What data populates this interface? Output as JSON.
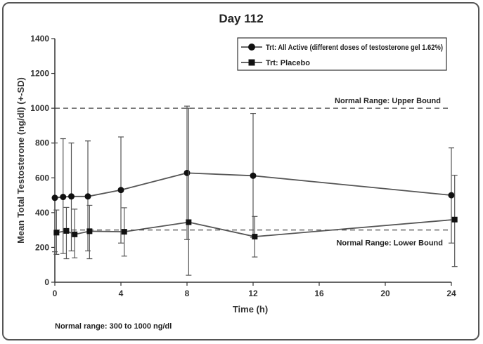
{
  "chart_data": {
    "type": "line",
    "title": "Day 112",
    "xlabel": "Time (h)",
    "ylabel": "Mean Total Testosterone (ng/dl) (+-SD)",
    "xlim": [
      0,
      24
    ],
    "ylim": [
      0,
      1400
    ],
    "xticks": [
      0,
      4,
      8,
      12,
      16,
      20,
      24
    ],
    "yticks": [
      0,
      200,
      400,
      600,
      800,
      1000,
      1200,
      1400
    ],
    "legend_position": "top-right",
    "series": [
      {
        "name": "Trt: All Active (different doses of testosterone gel 1.62%)",
        "marker": "circle",
        "x": [
          0,
          0.5,
          1,
          2,
          4,
          8,
          12,
          24
        ],
        "values": [
          485,
          490,
          493,
          493,
          530,
          628,
          612,
          500
        ],
        "sd_upper": [
          800,
          825,
          800,
          812,
          835,
          1012,
          970,
          772
        ],
        "sd_lower": [
          175,
          165,
          180,
          180,
          225,
          245,
          258,
          225
        ]
      },
      {
        "name": "Trt: Placebo",
        "marker": "square",
        "x": [
          0.1,
          0.7,
          1.2,
          2.1,
          4.2,
          8.1,
          12.1,
          24.2
        ],
        "values": [
          285,
          295,
          275,
          293,
          290,
          345,
          262,
          360
        ],
        "sd_upper": [
          415,
          430,
          420,
          442,
          428,
          1000,
          378,
          615
        ],
        "sd_lower": [
          160,
          135,
          140,
          135,
          150,
          40,
          145,
          90
        ]
      }
    ],
    "reference_lines": [
      {
        "value": 1000,
        "label": "Normal Range: Upper Bound"
      },
      {
        "value": 300,
        "label": "Normal Range: Lower Bound"
      }
    ],
    "footnote": "Normal range: 300 to 1000 ng/dl"
  }
}
